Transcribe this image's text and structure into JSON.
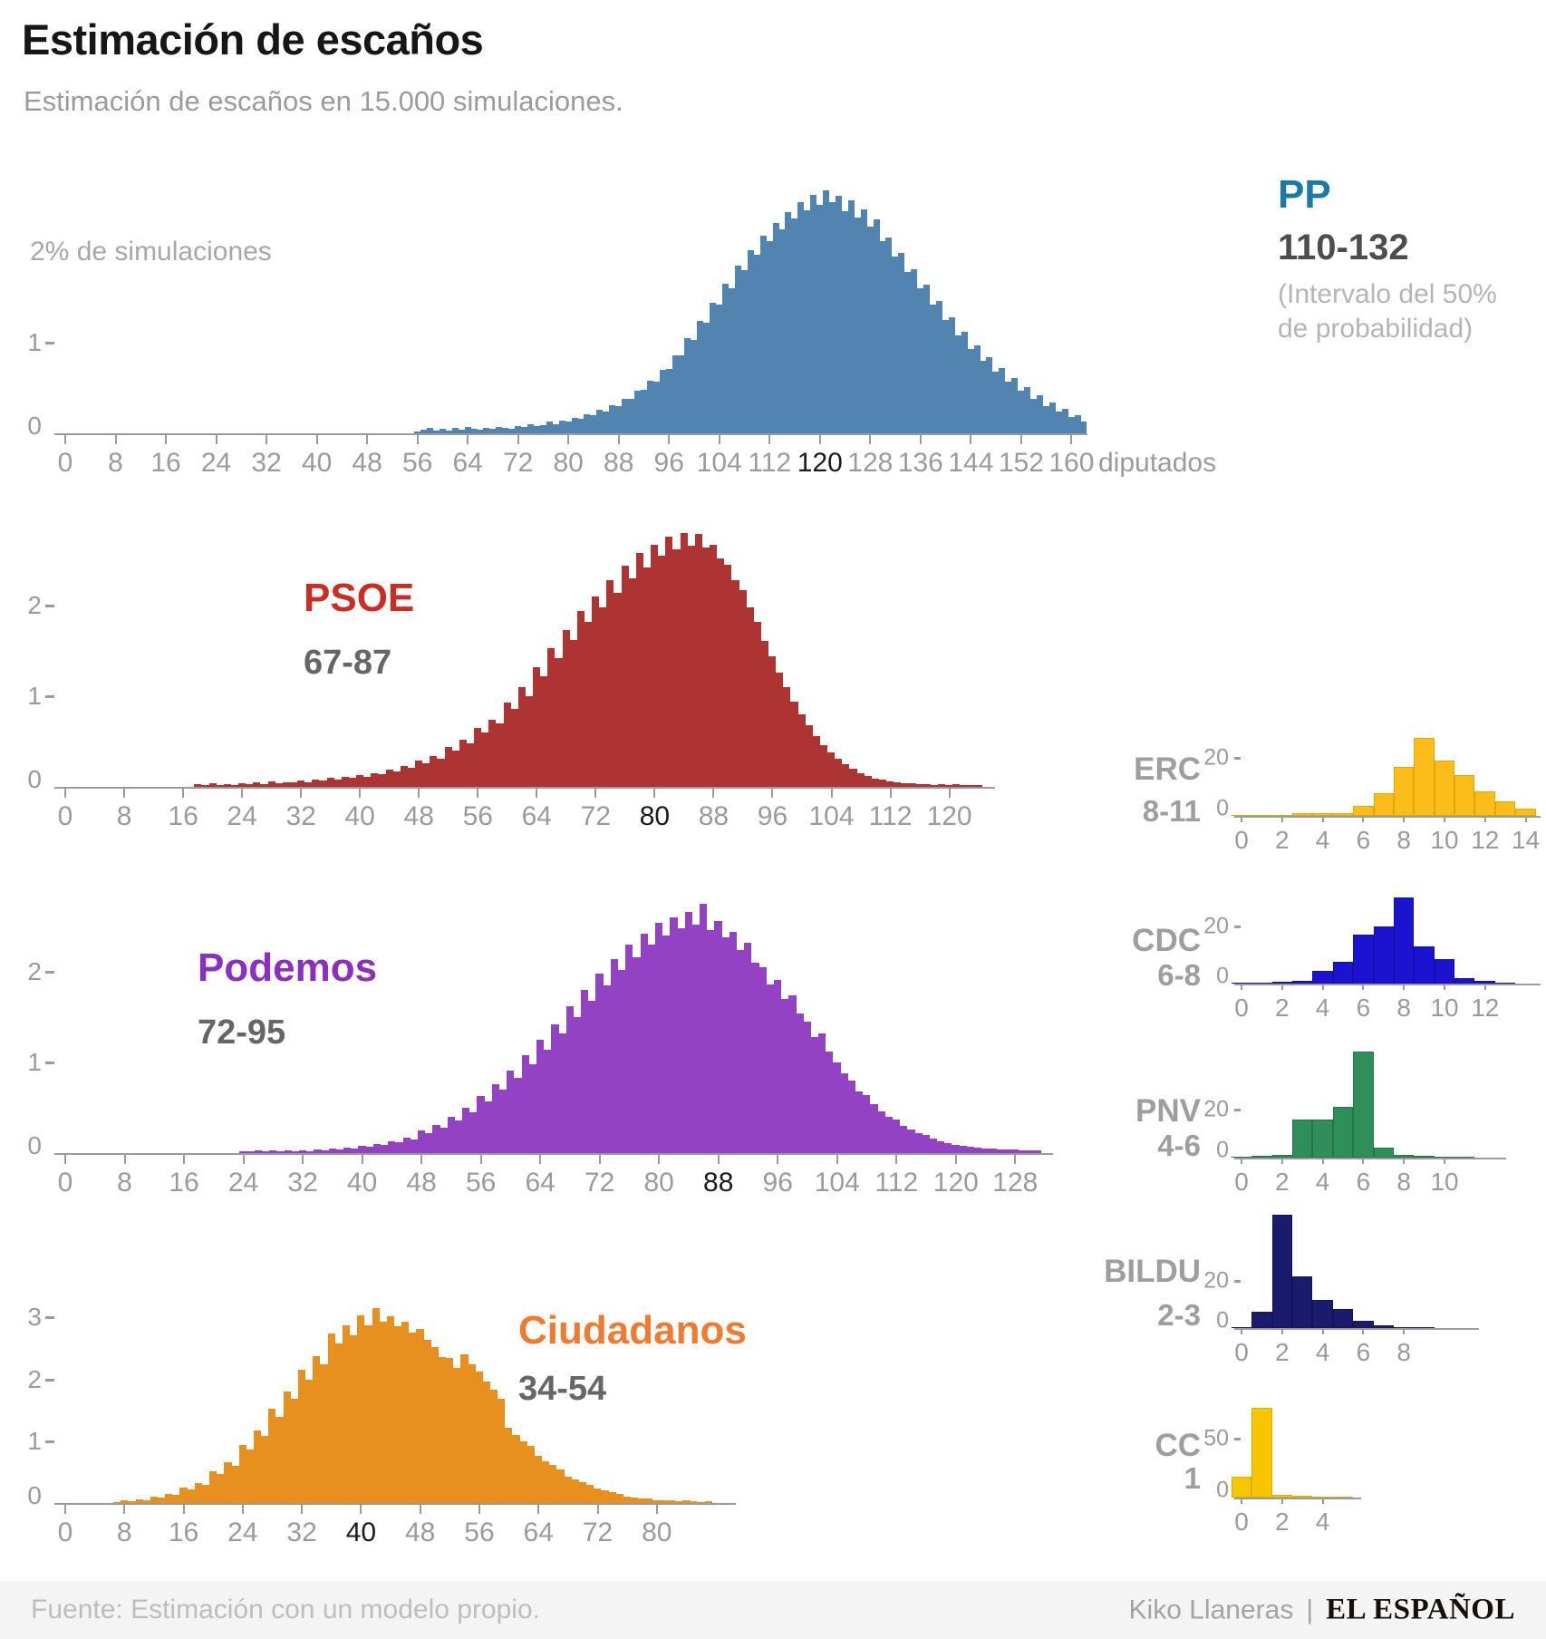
{
  "page": {
    "title": "Estimación de escaños",
    "subtitle": "Estimación de escaños en 15.000 simulaciones.",
    "footer": {
      "source": "Fuente: Estimación con un modelo propio.",
      "author": "Kiko Llaneras",
      "separator": "|",
      "brand": "EL ESPAÑOL"
    }
  },
  "chart_data": [
    {
      "id": "pp",
      "type": "bar",
      "party": "PP",
      "interval": "110-132",
      "note_lines": [
        "(Intervalo del 50%",
        "de probabilidad)"
      ],
      "bar_color": "#5184b1",
      "label_color": "#1a7aa5",
      "interval_color": "#4d4d4d",
      "y_top_label": "2% de simulaciones",
      "y_top_value": 2,
      "x_axis_suffix": "diputados",
      "x_tick_emphasis": 120,
      "x_ticks": [
        0,
        8,
        16,
        24,
        32,
        40,
        48,
        56,
        64,
        72,
        80,
        88,
        96,
        104,
        112,
        120,
        128,
        136,
        144,
        152,
        160
      ],
      "y_ticks": [
        0,
        1
      ],
      "xlim": [
        0,
        163
      ],
      "ylim": [
        0,
        3
      ],
      "bins_start": 56,
      "values": [
        0.02,
        0.04,
        0.06,
        0.03,
        0.05,
        0.03,
        0.06,
        0.04,
        0.07,
        0.05,
        0.04,
        0.06,
        0.05,
        0.07,
        0.06,
        0.05,
        0.08,
        0.07,
        0.1,
        0.08,
        0.09,
        0.13,
        0.1,
        0.14,
        0.13,
        0.17,
        0.16,
        0.21,
        0.2,
        0.26,
        0.24,
        0.31,
        0.3,
        0.38,
        0.38,
        0.47,
        0.48,
        0.58,
        0.57,
        0.7,
        0.71,
        0.86,
        0.86,
        1.05,
        1.03,
        1.24,
        1.22,
        1.44,
        1.42,
        1.65,
        1.6,
        1.85,
        1.8,
        2.02,
        1.97,
        2.18,
        2.12,
        2.32,
        2.25,
        2.44,
        2.37,
        2.55,
        2.46,
        2.63,
        2.52,
        2.68,
        2.55,
        2.62,
        2.45,
        2.57,
        2.38,
        2.47,
        2.28,
        2.36,
        2.12,
        2.16,
        1.95,
        1.99,
        1.78,
        1.81,
        1.6,
        1.64,
        1.42,
        1.46,
        1.25,
        1.28,
        1.08,
        1.12,
        0.93,
        0.97,
        0.8,
        0.84,
        0.68,
        0.72,
        0.57,
        0.61,
        0.47,
        0.51,
        0.38,
        0.42,
        0.3,
        0.34,
        0.24,
        0.27,
        0.18,
        0.2,
        0.13
      ]
    },
    {
      "id": "psoe",
      "type": "bar",
      "party": "PSOE",
      "interval": "67-87",
      "bar_color": "#ad3433",
      "label_color": "#c92d24",
      "interval_color": "#666666",
      "x_tick_emphasis": 80,
      "x_ticks": [
        0,
        8,
        16,
        24,
        32,
        40,
        48,
        56,
        64,
        72,
        80,
        88,
        96,
        104,
        112,
        120
      ],
      "y_ticks": [
        0,
        1,
        2
      ],
      "xlim": [
        0,
        124
      ],
      "ylim": [
        0,
        2.95
      ],
      "bins_start": 18,
      "values": [
        0.03,
        0.02,
        0.04,
        0.02,
        0.03,
        0.02,
        0.04,
        0.03,
        0.05,
        0.03,
        0.06,
        0.04,
        0.05,
        0.05,
        0.07,
        0.05,
        0.08,
        0.07,
        0.1,
        0.08,
        0.11,
        0.1,
        0.13,
        0.11,
        0.15,
        0.14,
        0.19,
        0.17,
        0.23,
        0.21,
        0.29,
        0.26,
        0.34,
        0.31,
        0.44,
        0.4,
        0.52,
        0.48,
        0.65,
        0.6,
        0.74,
        0.7,
        0.93,
        0.86,
        1.1,
        1.0,
        1.32,
        1.22,
        1.53,
        1.42,
        1.73,
        1.62,
        1.94,
        1.82,
        2.1,
        1.98,
        2.28,
        2.14,
        2.44,
        2.3,
        2.58,
        2.42,
        2.67,
        2.55,
        2.76,
        2.62,
        2.8,
        2.66,
        2.79,
        2.64,
        2.67,
        2.52,
        2.45,
        2.28,
        2.17,
        1.98,
        1.82,
        1.61,
        1.44,
        1.26,
        1.1,
        0.94,
        0.8,
        0.68,
        0.56,
        0.46,
        0.38,
        0.31,
        0.25,
        0.2,
        0.15,
        0.12,
        0.09,
        0.08,
        0.06,
        0.05,
        0.04,
        0.04,
        0.03,
        0.03,
        0.02,
        0.03,
        0.02,
        0.03,
        0.02,
        0.02,
        0.02
      ]
    },
    {
      "id": "podemos",
      "type": "bar",
      "party": "Podemos",
      "interval": "72-95",
      "bar_color": "#9442c4",
      "label_color": "#8c2fc0",
      "interval_color": "#666666",
      "x_tick_emphasis": 88,
      "x_ticks": [
        0,
        8,
        16,
        24,
        32,
        40,
        48,
        56,
        64,
        72,
        80,
        88,
        96,
        104,
        112,
        120,
        128
      ],
      "y_ticks": [
        0,
        1,
        2
      ],
      "xlim": [
        0,
        131
      ],
      "ylim": [
        0,
        2.95
      ],
      "bins_start": 24,
      "values": [
        0.02,
        0.02,
        0.03,
        0.02,
        0.03,
        0.02,
        0.03,
        0.02,
        0.03,
        0.02,
        0.04,
        0.03,
        0.05,
        0.04,
        0.06,
        0.05,
        0.08,
        0.07,
        0.1,
        0.09,
        0.13,
        0.12,
        0.17,
        0.15,
        0.25,
        0.22,
        0.31,
        0.28,
        0.4,
        0.36,
        0.5,
        0.45,
        0.63,
        0.57,
        0.76,
        0.7,
        0.91,
        0.83,
        1.08,
        0.98,
        1.25,
        1.14,
        1.42,
        1.32,
        1.62,
        1.5,
        1.8,
        1.68,
        1.98,
        1.85,
        2.14,
        2.02,
        2.3,
        2.16,
        2.42,
        2.3,
        2.54,
        2.4,
        2.6,
        2.48,
        2.66,
        2.52,
        2.75,
        2.46,
        2.56,
        2.38,
        2.44,
        2.24,
        2.32,
        2.1,
        2.05,
        1.86,
        1.91,
        1.7,
        1.74,
        1.54,
        1.45,
        1.28,
        1.32,
        1.12,
        1.0,
        0.88,
        0.8,
        0.68,
        0.64,
        0.54,
        0.46,
        0.4,
        0.37,
        0.3,
        0.26,
        0.22,
        0.2,
        0.16,
        0.13,
        0.11,
        0.09,
        0.08,
        0.07,
        0.06,
        0.05,
        0.05,
        0.04,
        0.04,
        0.04,
        0.03,
        0.03,
        0.03
      ]
    },
    {
      "id": "cs",
      "type": "bar",
      "party": "Ciudadanos",
      "interval": "34-54",
      "bar_color": "#e8901f",
      "label_color": "#ef7b33",
      "interval_color": "#666666",
      "x_tick_emphasis": 40,
      "x_ticks": [
        0,
        8,
        16,
        24,
        32,
        40,
        48,
        56,
        64,
        72,
        80
      ],
      "y_ticks": [
        0,
        1,
        2,
        3
      ],
      "xlim": [
        0,
        87
      ],
      "ylim": [
        0,
        3.3
      ],
      "bins_start": 7,
      "values": [
        0.02,
        0.04,
        0.03,
        0.06,
        0.05,
        0.1,
        0.09,
        0.15,
        0.13,
        0.25,
        0.22,
        0.33,
        0.3,
        0.52,
        0.47,
        0.66,
        0.6,
        0.94,
        0.86,
        1.18,
        1.08,
        1.52,
        1.4,
        1.8,
        1.68,
        2.16,
        2.0,
        2.38,
        2.24,
        2.74,
        2.58,
        2.88,
        2.72,
        3.04,
        2.88,
        3.16,
        2.94,
        3.02,
        2.86,
        2.94,
        2.76,
        2.82,
        2.64,
        2.52,
        2.36,
        2.34,
        2.18,
        2.4,
        2.25,
        2.12,
        1.96,
        1.84,
        1.68,
        1.22,
        1.1,
        1.0,
        0.92,
        0.76,
        0.68,
        0.62,
        0.55,
        0.43,
        0.38,
        0.34,
        0.3,
        0.23,
        0.2,
        0.17,
        0.15,
        0.11,
        0.09,
        0.08,
        0.07,
        0.05,
        0.04,
        0.05,
        0.03,
        0.04,
        0.03,
        0.02,
        0.03
      ]
    },
    {
      "id": "erc",
      "type": "bar",
      "party": "ERC",
      "interval": "8-11",
      "bar_color": "#fcbd1b",
      "bar_stroke": "#e3a70c",
      "label_color": "#9e9e9e",
      "interval_color": "#9e9e9e",
      "x_ticks": [
        0,
        2,
        4,
        6,
        8,
        10,
        12,
        14
      ],
      "y_ticks": [
        0,
        20
      ],
      "xlim": [
        0,
        14
      ],
      "ylim": [
        0,
        32
      ],
      "bins_start": 0,
      "values": [
        0.1,
        0.2,
        0.3,
        0.8,
        0.8,
        1.0,
        3.5,
        8,
        17,
        27,
        19,
        14,
        8.5,
        5,
        2.5
      ]
    },
    {
      "id": "cdc",
      "type": "bar",
      "party": "CDC",
      "interval": "6-8",
      "bar_color": "#1a13cf",
      "bar_stroke": "#1510a8",
      "label_color": "#9e9e9e",
      "interval_color": "#9e9e9e",
      "x_ticks": [
        0,
        2,
        4,
        6,
        8,
        10,
        12
      ],
      "y_ticks": [
        0,
        20
      ],
      "xlim": [
        0,
        13
      ],
      "ylim": [
        0,
        33
      ],
      "bins_start": 0,
      "values": [
        0.2,
        0.4,
        0.6,
        1.0,
        4.5,
        7.5,
        17,
        20,
        30,
        13,
        8.5,
        2.0,
        0.8,
        0.3
      ]
    },
    {
      "id": "pnv",
      "type": "bar",
      "party": "PNV",
      "interval": "4-6",
      "bar_color": "#2e8f58",
      "bar_stroke": "#267549",
      "label_color": "#9e9e9e",
      "interval_color": "#9e9e9e",
      "x_ticks": [
        0,
        2,
        4,
        6,
        8,
        10
      ],
      "y_ticks": [
        0,
        20
      ],
      "xlim": [
        0,
        11
      ],
      "ylim": [
        0,
        46
      ],
      "bins_start": 0,
      "values": [
        0.2,
        0.8,
        1.2,
        16,
        16,
        21,
        44,
        4,
        1.2,
        0.8,
        0.5,
        0.3
      ]
    },
    {
      "id": "bildu",
      "type": "bar",
      "party": "BILDU",
      "interval": "2-3",
      "bar_color": "#1b1b6e",
      "bar_stroke": "#14145a",
      "label_color": "#9e9e9e",
      "interval_color": "#9e9e9e",
      "x_ticks": [
        0,
        2,
        4,
        6,
        8
      ],
      "y_ticks": [
        0,
        20
      ],
      "xlim": [
        0,
        9
      ],
      "ylim": [
        0,
        50
      ],
      "bins_start": 0,
      "values": [
        0.3,
        7,
        48,
        22,
        12,
        8,
        3,
        1,
        0.4,
        0.2
      ]
    },
    {
      "id": "cc",
      "type": "bar",
      "party": "CC",
      "interval": "1",
      "bar_color": "#f7c600",
      "bar_stroke": "#dcb000",
      "label_color": "#9e9e9e",
      "interval_color": "#9e9e9e",
      "x_ticks": [
        0,
        2,
        4
      ],
      "y_ticks": [
        0,
        50
      ],
      "xlim": [
        0,
        5
      ],
      "ylim": [
        0,
        83
      ],
      "bins_start": 0,
      "values": [
        18,
        76,
        2.5,
        1.5,
        0.8,
        0.3
      ]
    }
  ]
}
